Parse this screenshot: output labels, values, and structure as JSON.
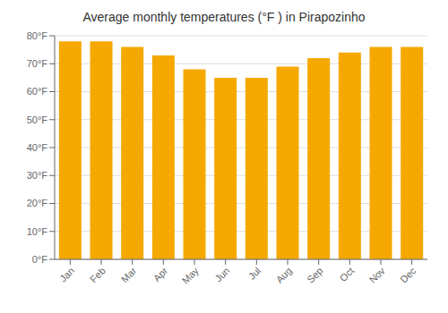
{
  "chart_data": {
    "type": "bar",
    "title": "Average monthly temperatures (°F ) in Pirapozinho",
    "categories": [
      "Jan",
      "Feb",
      "Mar",
      "Apr",
      "May",
      "Jun",
      "Jul",
      "Aug",
      "Sep",
      "Oct",
      "Nov",
      "Dec"
    ],
    "values": [
      78,
      78,
      76,
      73,
      68,
      65,
      65,
      69,
      72,
      74,
      76,
      76
    ],
    "color": "#F5A800",
    "ylim": [
      0,
      80
    ],
    "yticks": [
      {
        "value": 0,
        "label": "0°F"
      },
      {
        "value": 10,
        "label": "10°F"
      },
      {
        "value": 20,
        "label": "20°F"
      },
      {
        "value": 30,
        "label": "30°F"
      },
      {
        "value": 40,
        "label": "40°F"
      },
      {
        "value": 50,
        "label": "50°F"
      },
      {
        "value": 60,
        "label": "60°F"
      },
      {
        "value": 70,
        "label": "70°F"
      },
      {
        "value": 80,
        "label": "80°F"
      }
    ],
    "grid": true
  }
}
